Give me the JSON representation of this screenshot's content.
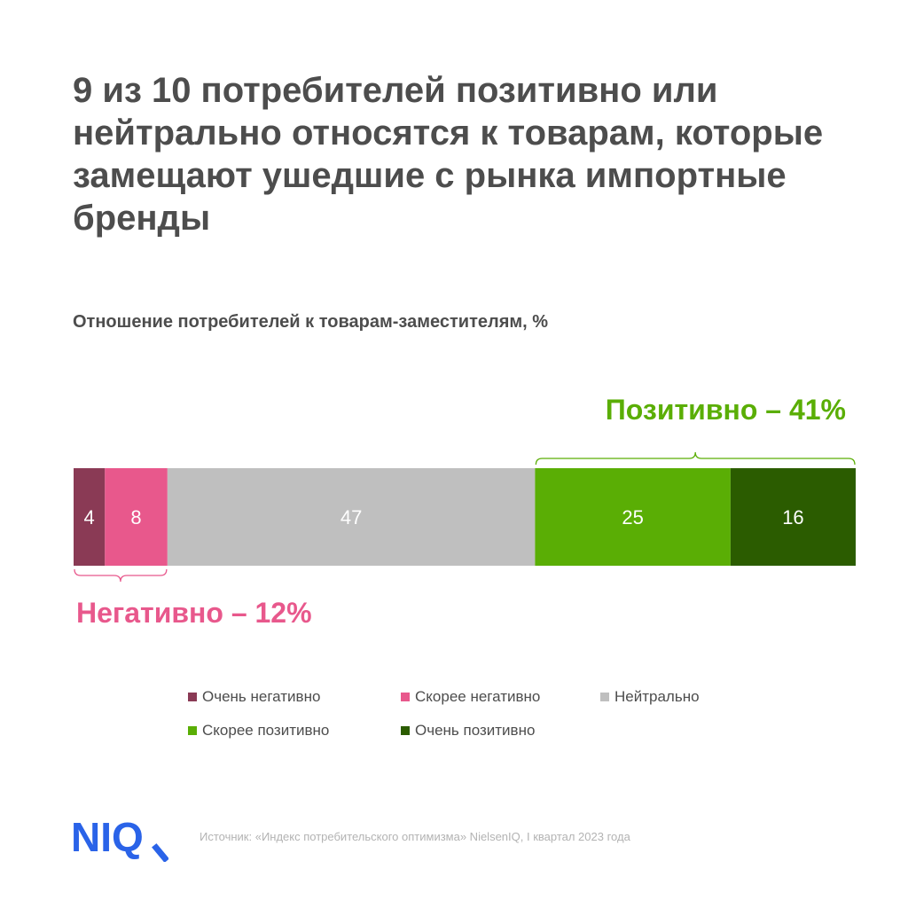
{
  "header": {
    "title": "9 из 10 потребителей позитивно или нейтрально относятся к товарам, которые замещают ушедшие с рынка импортные бренды"
  },
  "chart_data": {
    "type": "bar",
    "orientation": "horizontal-stacked",
    "title": "Отношение потребителей к товарам-заместителям, %",
    "xlabel": "",
    "ylabel": "",
    "xlim": [
      0,
      100
    ],
    "grid": false,
    "legend_position": "bottom",
    "categories": [
      ""
    ],
    "series": [
      {
        "name": "Очень негативно",
        "values": [
          4
        ],
        "color": "#8a3a55"
      },
      {
        "name": "Скорее негативно",
        "values": [
          8
        ],
        "color": "#e8588c"
      },
      {
        "name": "Нейтрально",
        "values": [
          47
        ],
        "color": "#bfbfbf"
      },
      {
        "name": "Скорее позитивно",
        "values": [
          25
        ],
        "color": "#5aae05"
      },
      {
        "name": "Очень позитивно",
        "values": [
          16
        ],
        "color": "#2b5c00"
      }
    ],
    "annotations": [
      {
        "label": "Негативно – 12%",
        "from_series": 0,
        "to_series": 1,
        "side": "below",
        "color": "#e8588c"
      },
      {
        "label": "Позитивно – 41%",
        "from_series": 3,
        "to_series": 4,
        "side": "above",
        "color": "#5aae05"
      }
    ]
  },
  "footer": {
    "logo_text": "NIQ",
    "logo_color": "#2a63e8",
    "source": "Источник: «Индекс потребительского оптимизма» NielsenIQ, I квартал 2023 года"
  }
}
